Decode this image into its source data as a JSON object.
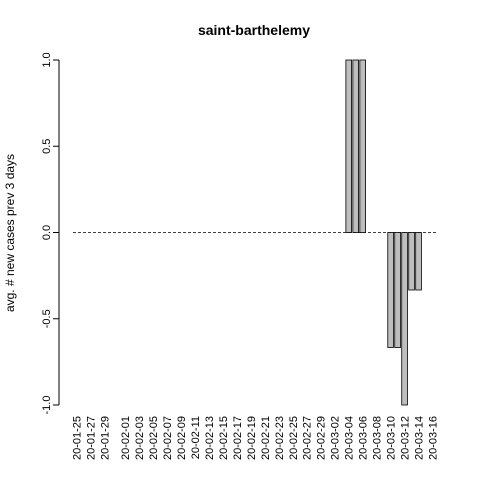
{
  "chart_data": {
    "type": "bar",
    "title": "saint-barthelemy",
    "xlabel": "",
    "ylabel": "avg. # new cases prev  3  days",
    "ylim": [
      -1.0,
      1.0
    ],
    "yticks": [
      "-1.0",
      "-0.5",
      "0.0",
      "0.5",
      "1.0"
    ],
    "ytick_values": [
      -1.0,
      -0.5,
      0.0,
      0.5,
      1.0
    ],
    "xtick_labels": [
      "20-01-25",
      "20-01-27",
      "20-01-29",
      "20-02-01",
      "20-02-03",
      "20-02-05",
      "20-02-07",
      "20-02-09",
      "20-02-11",
      "20-02-13",
      "20-02-15",
      "20-02-17",
      "20-02-19",
      "20-02-21",
      "20-02-23",
      "20-02-25",
      "20-02-27",
      "20-02-29",
      "20-03-02",
      "20-03-04",
      "20-03-06",
      "20-03-08",
      "20-03-10",
      "20-03-12",
      "20-03-14",
      "20-03-16"
    ],
    "categories": [
      "20-01-25",
      "20-01-26",
      "20-01-27",
      "20-01-28",
      "20-01-29",
      "20-01-30",
      "20-01-31",
      "20-02-01",
      "20-02-02",
      "20-02-03",
      "20-02-04",
      "20-02-05",
      "20-02-06",
      "20-02-07",
      "20-02-08",
      "20-02-09",
      "20-02-10",
      "20-02-11",
      "20-02-12",
      "20-02-13",
      "20-02-14",
      "20-02-15",
      "20-02-16",
      "20-02-17",
      "20-02-18",
      "20-02-19",
      "20-02-20",
      "20-02-21",
      "20-02-22",
      "20-02-23",
      "20-02-24",
      "20-02-25",
      "20-02-26",
      "20-02-27",
      "20-02-28",
      "20-02-29",
      "20-03-01",
      "20-03-02",
      "20-03-03",
      "20-03-04",
      "20-03-05",
      "20-03-06",
      "20-03-07",
      "20-03-08",
      "20-03-09",
      "20-03-10",
      "20-03-11",
      "20-03-12",
      "20-03-13",
      "20-03-14",
      "20-03-15",
      "20-03-16"
    ],
    "values": [
      0,
      0,
      0,
      0,
      0,
      0,
      0,
      0,
      0,
      0,
      0,
      0,
      0,
      0,
      0,
      0,
      0,
      0,
      0,
      0,
      0,
      0,
      0,
      0,
      0,
      0,
      0,
      0,
      0,
      0,
      0,
      0,
      0,
      0,
      0,
      0,
      0,
      0,
      0,
      1,
      1,
      1,
      0,
      0,
      0,
      -0.6667,
      -0.6667,
      -1,
      -0.3333,
      -0.3333,
      0,
      0
    ],
    "colors": {
      "bar_fill": "#bebebe",
      "bar_stroke": "#000000"
    },
    "grid": false,
    "legend": "none"
  }
}
